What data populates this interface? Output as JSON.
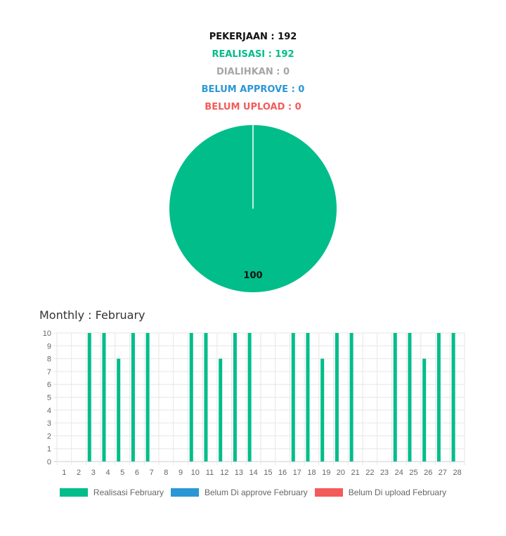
{
  "summary": {
    "pekerjaan": "PEKERJAAN : 192",
    "realisasi": "REALISASI : 192",
    "dialihkan": "DIALIHKAN : 0",
    "belum_approve": "BELUM APPROVE : 0",
    "belum_upload": "BELUM UPLOAD : 0"
  },
  "colors": {
    "pekerjaan": "#111111",
    "realisasi": "#00bd8a",
    "dialihkan": "#a6a6a6",
    "belum_approve": "#2b96d6",
    "belum_upload": "#f35b5b",
    "grid": "#e6e6e6",
    "axis_text": "#666666"
  },
  "monthly_title": "Monthly : February",
  "chart_data": [
    {
      "type": "pie",
      "slices": [
        {
          "value": 100,
          "label": "100",
          "color": "#00bd8a"
        }
      ]
    },
    {
      "type": "bar",
      "categories": [
        "1",
        "2",
        "3",
        "4",
        "5",
        "6",
        "7",
        "8",
        "9",
        "10",
        "11",
        "12",
        "13",
        "14",
        "15",
        "16",
        "17",
        "18",
        "19",
        "20",
        "21",
        "22",
        "23",
        "24",
        "25",
        "26",
        "27",
        "28"
      ],
      "series": [
        {
          "name": "Realisasi February",
          "color": "#00bd8a",
          "values": [
            0,
            0,
            10,
            10,
            8,
            10,
            10,
            0,
            0,
            10,
            10,
            8,
            10,
            10,
            0,
            0,
            10,
            10,
            8,
            10,
            10,
            0,
            0,
            10,
            10,
            8,
            10,
            10
          ]
        },
        {
          "name": "Belum Di approve February",
          "color": "#2b96d6",
          "values": [
            0,
            0,
            0,
            0,
            0,
            0,
            0,
            0,
            0,
            0,
            0,
            0,
            0,
            0,
            0,
            0,
            0,
            0,
            0,
            0,
            0,
            0,
            0,
            0,
            0,
            0,
            0,
            0
          ]
        },
        {
          "name": "Belum Di upload February",
          "color": "#f35b5b",
          "values": [
            0,
            0,
            0,
            0,
            0,
            0,
            0,
            0,
            0,
            0,
            0,
            0,
            0,
            0,
            0,
            0,
            0,
            0,
            0,
            0,
            0,
            0,
            0,
            0,
            0,
            0,
            0,
            0
          ]
        }
      ],
      "ylim": [
        0,
        10
      ],
      "yticks": [
        0,
        1,
        2,
        3,
        4,
        5,
        6,
        7,
        8,
        9,
        10
      ],
      "grid": true,
      "legend_position": "bottom"
    }
  ]
}
